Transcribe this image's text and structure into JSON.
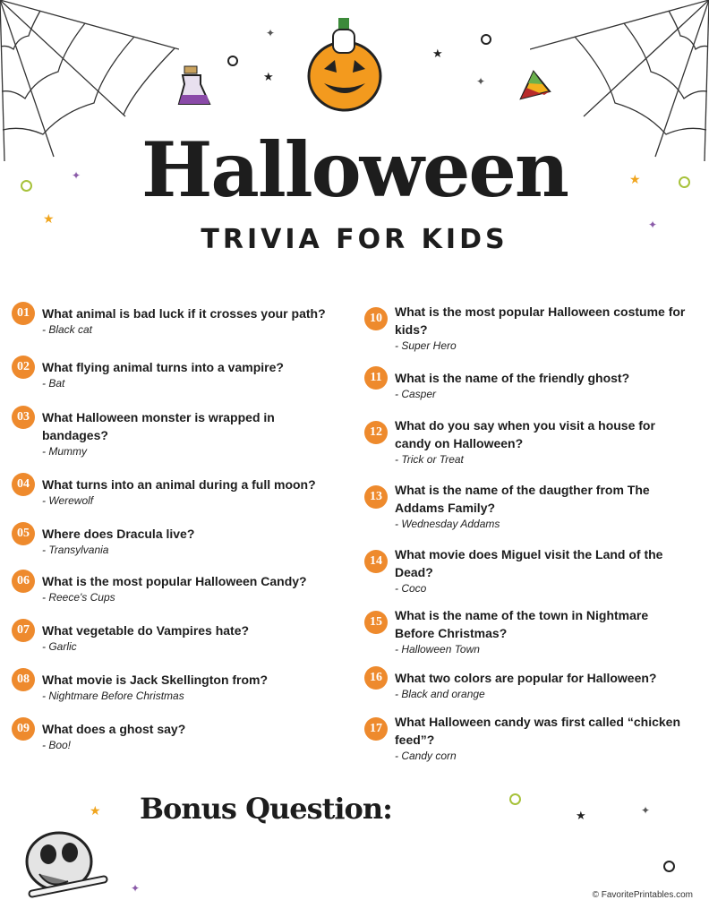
{
  "header": {
    "title": "Halloween",
    "subtitle": "TRIVIA FOR KIDS"
  },
  "questions": [
    {
      "num": "01",
      "q": "What animal is bad luck if it crosses your path?",
      "a": "- Black cat"
    },
    {
      "num": "02",
      "q": "What flying animal turns into a vampire?",
      "a": "- Bat"
    },
    {
      "num": "03",
      "q": "What Halloween monster is wrapped in bandages?",
      "a": "- Mummy"
    },
    {
      "num": "04",
      "q": "What turns into an animal during a full moon?",
      "a": "- Werewolf"
    },
    {
      "num": "05",
      "q": "Where does Dracula live?",
      "a": "- Transylvania"
    },
    {
      "num": "06",
      "q": "What is the most popular Halloween Candy?",
      "a": "- Reece's Cups"
    },
    {
      "num": "07",
      "q": "What vegetable do Vampires hate?",
      "a": "- Garlic"
    },
    {
      "num": "08",
      "q": "What movie is Jack Skellington from?",
      "a": "- Nightmare Before Christmas"
    },
    {
      "num": "09",
      "q": "What does a ghost say?",
      "a": "- Boo!"
    },
    {
      "num": "10",
      "q": "What is the most popular Halloween costume for kids?",
      "a": "- Super Hero"
    },
    {
      "num": "11",
      "q": "What is the name of the friendly ghost?",
      "a": "- Casper"
    },
    {
      "num": "12",
      "q": "What do you say when you visit a house for candy on Halloween?",
      "a": "- Trick or Treat"
    },
    {
      "num": "13",
      "q": "What is the name of the daugther from The Addams Family?",
      "a": "- Wednesday Addams"
    },
    {
      "num": "14",
      "q": "What movie does Miguel visit the Land of the Dead?",
      "a": "- Coco"
    },
    {
      "num": "15",
      "q": "What is the name of the town in Nightmare Before Christmas?",
      "a": "- Halloween Town"
    },
    {
      "num": "16",
      "q": "What two colors are popular for Halloween?",
      "a": "- Black and orange"
    },
    {
      "num": "17",
      "q": "What Halloween candy was first called “chicken feed”?",
      "a": "- Candy corn"
    }
  ],
  "bonus": {
    "label": "Bonus Question:"
  },
  "footer": {
    "credit": "© FavoritePrintables.com"
  },
  "colors": {
    "accent": "#ee8a2d",
    "text": "#1d1d1d"
  }
}
